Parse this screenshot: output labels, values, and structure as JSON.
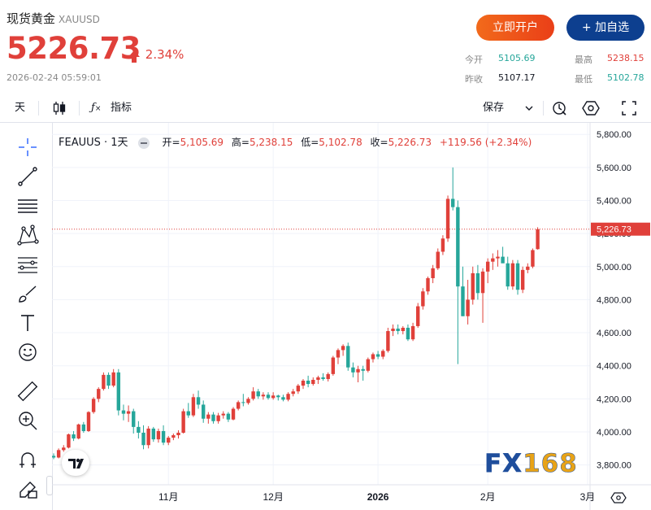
{
  "header": {
    "name": "现货黄金",
    "code": "XAUUSD",
    "price": "5226.73",
    "change_pct": "2.34%",
    "timestamp": "2026-02-24 05:59:01",
    "open_account_label": "立即开户",
    "add_watch_label": "+ 加自选",
    "quotes": [
      {
        "label": "今开",
        "value": "5105.69",
        "color": "#26a69a"
      },
      {
        "label": "最高",
        "value": "5238.15",
        "color": "#e0403a"
      },
      {
        "label": "昨收",
        "value": "5107.17",
        "color": "#131722"
      },
      {
        "label": "最低",
        "value": "5102.78",
        "color": "#26a69a"
      }
    ]
  },
  "toolbar": {
    "interval": "天",
    "indicators_label": "指标",
    "save_label": "保存"
  },
  "legend": {
    "symbol": "FEAUUS · 1天",
    "open_k": "开=",
    "open_v": "5,105.69",
    "high_k": "高=",
    "high_v": "5,238.15",
    "low_k": "低=",
    "low_v": "5,102.78",
    "close_k": "收=",
    "close_v": "5,226.73",
    "change": "+119.56 (+2.34%)"
  },
  "watermark": {
    "text": "FX168",
    "color_fx": "#1f4e9c",
    "color_num": "#e8a317"
  },
  "colors": {
    "up": "#e0403a",
    "down": "#26a69a"
  },
  "chart_data": {
    "type": "candlestick",
    "y_ticks": [
      "5,800.00",
      "5,600.00",
      "5,400.00",
      "5,200.00",
      "5,000.00",
      "4,800.00",
      "4,600.00",
      "4,400.00",
      "4,200.00",
      "4,000.00",
      "3,800.00"
    ],
    "y_tick_values": [
      5800,
      5600,
      5400,
      5200,
      5000,
      4800,
      4600,
      4400,
      4200,
      4000,
      3800
    ],
    "ylim": [
      3680,
      5870
    ],
    "x_labels": [
      {
        "label": "11月",
        "index": 23
      },
      {
        "label": "12月",
        "index": 44
      },
      {
        "label": "2026",
        "index": 65
      },
      {
        "label": "2月",
        "index": 87
      },
      {
        "label": "3月",
        "index": 107
      }
    ],
    "last_price": 5226.73,
    "last_price_label": "5,226.73",
    "candles": [
      [
        3855,
        3870,
        3835,
        3845
      ],
      [
        3845,
        3900,
        3840,
        3890
      ],
      [
        3890,
        3920,
        3880,
        3905
      ],
      [
        3905,
        3990,
        3900,
        3985
      ],
      [
        3985,
        4005,
        3945,
        3960
      ],
      [
        3960,
        4050,
        3955,
        4045
      ],
      [
        4045,
        4060,
        3995,
        4005
      ],
      [
        4005,
        4125,
        4000,
        4120
      ],
      [
        4120,
        4210,
        4110,
        4200
      ],
      [
        4200,
        4270,
        4180,
        4260
      ],
      [
        4260,
        4360,
        4250,
        4345
      ],
      [
        4345,
        4360,
        4260,
        4280
      ],
      [
        4280,
        4380,
        4270,
        4360
      ],
      [
        4360,
        4380,
        4100,
        4130
      ],
      [
        4130,
        4165,
        4070,
        4110
      ],
      [
        4110,
        4160,
        4060,
        4125
      ],
      [
        4125,
        4140,
        3990,
        4030
      ],
      [
        4030,
        4065,
        3960,
        3995
      ],
      [
        3995,
        4040,
        3895,
        3920
      ],
      [
        3920,
        4035,
        3900,
        4020
      ],
      [
        4020,
        4030,
        3940,
        3955
      ],
      [
        3955,
        4020,
        3935,
        4005
      ],
      [
        4005,
        4040,
        3920,
        3935
      ],
      [
        3935,
        3975,
        3920,
        3965
      ],
      [
        3965,
        3990,
        3950,
        3980
      ],
      [
        3980,
        4010,
        3960,
        3995
      ],
      [
        3995,
        4140,
        3990,
        4125
      ],
      [
        4125,
        4175,
        4085,
        4100
      ],
      [
        4100,
        4230,
        4090,
        4210
      ],
      [
        4210,
        4250,
        4140,
        4165
      ],
      [
        4165,
        4190,
        4055,
        4080
      ],
      [
        4080,
        4120,
        4050,
        4105
      ],
      [
        4105,
        4120,
        4050,
        4065
      ],
      [
        4065,
        4115,
        4050,
        4100
      ],
      [
        4100,
        4125,
        4080,
        4110
      ],
      [
        4110,
        4120,
        4060,
        4075
      ],
      [
        4075,
        4150,
        4070,
        4140
      ],
      [
        4140,
        4190,
        4130,
        4180
      ],
      [
        4180,
        4230,
        4155,
        4175
      ],
      [
        4175,
        4210,
        4165,
        4200
      ],
      [
        4200,
        4270,
        4190,
        4245
      ],
      [
        4245,
        4260,
        4200,
        4215
      ],
      [
        4215,
        4240,
        4195,
        4225
      ],
      [
        4225,
        4240,
        4195,
        4205
      ],
      [
        4205,
        4240,
        4195,
        4220
      ],
      [
        4220,
        4225,
        4190,
        4210
      ],
      [
        4210,
        4225,
        4185,
        4195
      ],
      [
        4195,
        4240,
        4185,
        4230
      ],
      [
        4230,
        4260,
        4215,
        4245
      ],
      [
        4245,
        4290,
        4230,
        4280
      ],
      [
        4280,
        4320,
        4260,
        4310
      ],
      [
        4310,
        4340,
        4270,
        4290
      ],
      [
        4290,
        4330,
        4280,
        4315
      ],
      [
        4315,
        4340,
        4290,
        4330
      ],
      [
        4330,
        4355,
        4310,
        4320
      ],
      [
        4320,
        4360,
        4305,
        4350
      ],
      [
        4350,
        4460,
        4340,
        4450
      ],
      [
        4450,
        4505,
        4410,
        4495
      ],
      [
        4495,
        4530,
        4460,
        4520
      ],
      [
        4520,
        4540,
        4370,
        4390
      ],
      [
        4390,
        4420,
        4330,
        4360
      ],
      [
        4360,
        4400,
        4300,
        4380
      ],
      [
        4380,
        4400,
        4310,
        4370
      ],
      [
        4370,
        4450,
        4360,
        4440
      ],
      [
        4440,
        4480,
        4420,
        4470
      ],
      [
        4470,
        4490,
        4440,
        4455
      ],
      [
        4455,
        4500,
        4440,
        4490
      ],
      [
        4490,
        4630,
        4480,
        4610
      ],
      [
        4610,
        4650,
        4580,
        4625
      ],
      [
        4625,
        4650,
        4590,
        4610
      ],
      [
        4610,
        4640,
        4590,
        4630
      ],
      [
        4630,
        4650,
        4550,
        4560
      ],
      [
        4560,
        4660,
        4550,
        4640
      ],
      [
        4640,
        4780,
        4630,
        4760
      ],
      [
        4760,
        4870,
        4740,
        4850
      ],
      [
        4850,
        4940,
        4830,
        4930
      ],
      [
        4930,
        5010,
        4900,
        4990
      ],
      [
        4990,
        5110,
        4980,
        5090
      ],
      [
        5090,
        5190,
        5070,
        5170
      ],
      [
        5170,
        5430,
        5150,
        5410
      ],
      [
        5410,
        5600,
        5340,
        5360
      ],
      [
        5360,
        5400,
        4410,
        4880
      ],
      [
        4880,
        5000,
        4700,
        4700
      ],
      [
        4700,
        4920,
        4650,
        4800
      ],
      [
        4800,
        5000,
        4770,
        4960
      ],
      [
        4960,
        5010,
        4800,
        4840
      ],
      [
        4840,
        4990,
        4660,
        4970
      ],
      [
        4970,
        5050,
        4900,
        5030
      ],
      [
        5030,
        5080,
        4980,
        5050
      ],
      [
        5050,
        5100,
        5000,
        5060
      ],
      [
        5060,
        5120,
        5030,
        5020
      ],
      [
        5020,
        5060,
        4860,
        4880
      ],
      [
        4880,
        5040,
        4860,
        5020
      ],
      [
        5020,
        5040,
        4830,
        4860
      ],
      [
        4860,
        5000,
        4840,
        4980
      ],
      [
        4980,
        5020,
        4960,
        5000
      ],
      [
        5000,
        5110,
        4990,
        5100
      ],
      [
        5105.69,
        5238.15,
        5102.78,
        5226.73
      ]
    ]
  }
}
